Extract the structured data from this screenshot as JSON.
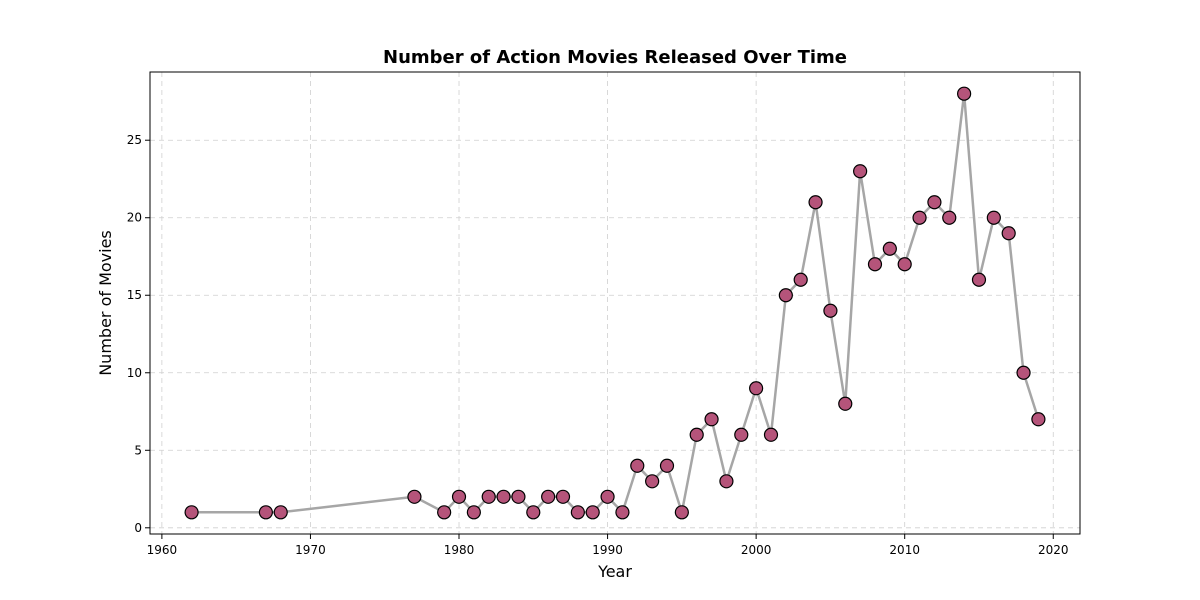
{
  "chart_data": {
    "type": "line",
    "title": "Number of Action Movies Released Over Time",
    "xlabel": "Year",
    "ylabel": "Number of Movies",
    "xlim": [
      1959.2,
      2021.8
    ],
    "ylim": [
      -0.4,
      29.4
    ],
    "xticks": [
      1960,
      1970,
      1980,
      1990,
      2000,
      2010,
      2020
    ],
    "yticks": [
      0,
      5,
      10,
      15,
      20,
      25
    ],
    "grid": true,
    "legend": "none",
    "series": [
      {
        "x": [
          1962,
          1967,
          1968,
          1977,
          1979,
          1980,
          1981,
          1982,
          1983,
          1984,
          1985,
          1986,
          1987,
          1988,
          1989,
          1990,
          1991,
          1992,
          1993,
          1994,
          1995,
          1996,
          1997,
          1998,
          1999,
          2000,
          2001,
          2002,
          2003,
          2004,
          2005,
          2006,
          2007,
          2008,
          2009,
          2010,
          2011,
          2012,
          2013,
          2014,
          2015,
          2016,
          2017,
          2018,
          2019
        ],
        "values": [
          1,
          1,
          1,
          2,
          1,
          2,
          1,
          2,
          2,
          2,
          1,
          2,
          2,
          1,
          1,
          2,
          1,
          4,
          3,
          4,
          1,
          6,
          7,
          3,
          6,
          9,
          6,
          15,
          16,
          21,
          14,
          8,
          23,
          17,
          18,
          17,
          20,
          21,
          20,
          28,
          16,
          20,
          19,
          10,
          7
        ],
        "line_color": "#a6a6a6",
        "marker_color": "#b5547a"
      }
    ]
  }
}
